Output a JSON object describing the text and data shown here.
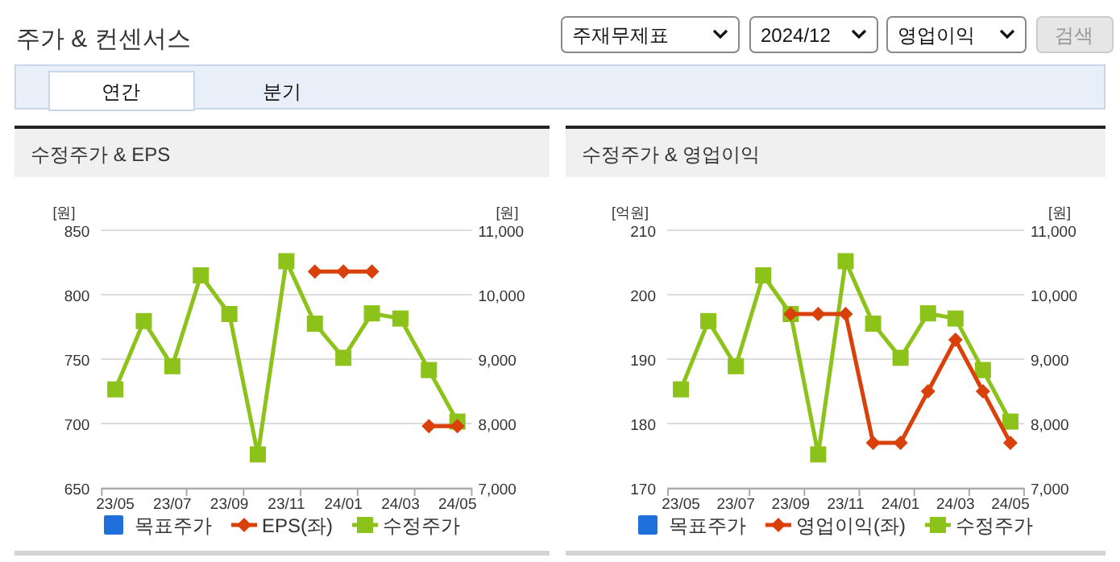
{
  "chart_data": [
    {
      "type": "other",
      "title": "주가 & 컨센서스",
      "annotations": [
        "주재무제표",
        "2024/12",
        "영업이익",
        "검색",
        "연간",
        "분기"
      ]
    },
    {
      "type": "line",
      "title": "수정주가 & EPS",
      "ylabel": "[원]",
      "y2label": "[원]",
      "categories": [
        "23/05",
        null,
        "23/07",
        null,
        "23/09",
        null,
        "23/11",
        null,
        "24/01",
        null,
        "24/03",
        null,
        "24/05"
      ],
      "ylim": [
        650,
        850
      ],
      "yticks": [
        650,
        700,
        750,
        800,
        850
      ],
      "y2lim": [
        7000,
        11000
      ],
      "y2ticks": [
        {
          "value": 7000,
          "label": "7,000"
        },
        {
          "value": 8000,
          "label": "8,000"
        },
        {
          "value": 9000,
          "label": "9,000"
        },
        {
          "value": 10000,
          "label": "10,000"
        },
        {
          "value": 11000,
          "label": "11,000"
        }
      ],
      "grid": "y",
      "legend": "bottom",
      "series": [
        {
          "name": "목표주가",
          "type": "bar",
          "color": "#1f6fdc",
          "values": [
            null,
            null,
            null,
            null,
            null,
            null,
            null,
            null,
            null,
            null,
            null,
            null,
            null
          ]
        },
        {
          "name": "EPS(좌)",
          "type": "line",
          "marker": "diamond",
          "color": "#d9400a",
          "values": [
            null,
            null,
            null,
            null,
            null,
            null,
            null,
            818,
            818,
            818,
            null,
            698,
            698
          ]
        },
        {
          "name": "수정주가",
          "type": "line",
          "marker": "square",
          "axis": "y2",
          "color": "#8cc21a",
          "values": [
            8530,
            9590,
            8890,
            10300,
            9700,
            7520,
            10520,
            9550,
            9020,
            9710,
            9630,
            8830,
            8030
          ]
        }
      ]
    },
    {
      "type": "line",
      "title": "수정주가 & 영업이익",
      "ylabel": "[억원]",
      "y2label": "[원]",
      "categories": [
        "23/05",
        null,
        "23/07",
        null,
        "23/09",
        null,
        "23/11",
        null,
        "24/01",
        null,
        "24/03",
        null,
        "24/05"
      ],
      "ylim": [
        170,
        210
      ],
      "yticks": [
        170,
        180,
        190,
        200,
        210
      ],
      "y2lim": [
        7000,
        11000
      ],
      "y2ticks": [
        {
          "value": 7000,
          "label": "7,000"
        },
        {
          "value": 8000,
          "label": "8,000"
        },
        {
          "value": 9000,
          "label": "9,000"
        },
        {
          "value": 10000,
          "label": "10,000"
        },
        {
          "value": 11000,
          "label": "11,000"
        }
      ],
      "grid": "y",
      "legend": "bottom",
      "series": [
        {
          "name": "목표주가",
          "type": "bar",
          "color": "#1f6fdc",
          "values": [
            null,
            null,
            null,
            null,
            null,
            null,
            null,
            null,
            null,
            null,
            null,
            null,
            null
          ]
        },
        {
          "name": "영업이익(좌)",
          "type": "line",
          "marker": "diamond",
          "color": "#d9400a",
          "values": [
            null,
            null,
            null,
            null,
            197,
            197,
            197,
            177,
            177,
            185,
            193,
            185,
            177
          ]
        },
        {
          "name": "수정주가",
          "type": "line",
          "marker": "square",
          "axis": "y2",
          "color": "#8cc21a",
          "values": [
            8530,
            9590,
            8890,
            10300,
            9700,
            7520,
            10520,
            9550,
            9020,
            9710,
            9630,
            8830,
            8030
          ]
        }
      ]
    }
  ]
}
